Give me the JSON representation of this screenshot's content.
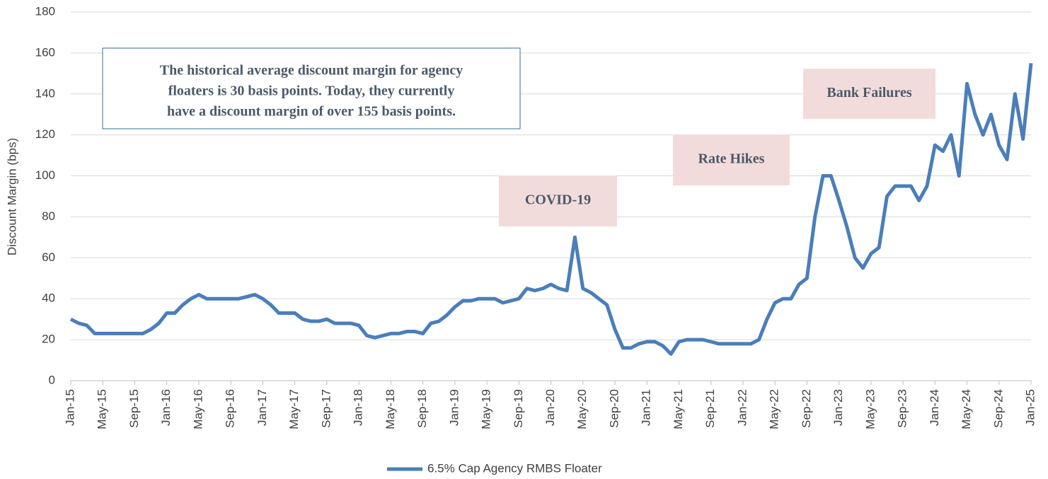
{
  "chart_data": {
    "type": "line",
    "y_label": "Discount Margin (bps)",
    "categories": [
      "Jan-15",
      null,
      null,
      null,
      "May-15",
      null,
      null,
      null,
      "Sep-15",
      null,
      null,
      null,
      "Jan-16",
      null,
      null,
      null,
      "May-16",
      null,
      null,
      null,
      "Sep-16",
      null,
      null,
      null,
      "Jan-17",
      null,
      null,
      null,
      "May-17",
      null,
      null,
      null,
      "Sep-17",
      null,
      null,
      null,
      "Jan-18",
      null,
      null,
      null,
      "May-18",
      null,
      null,
      null,
      "Sep-18",
      null,
      null,
      null,
      "Jan-19",
      null,
      null,
      null,
      "May-19",
      null,
      null,
      null,
      "Sep-19",
      null,
      null,
      null,
      "Jan-20",
      null,
      null,
      null,
      "May-20",
      null,
      null,
      null,
      "Sep-20",
      null,
      null,
      null,
      "Jan-21",
      null,
      null,
      null,
      "May-21",
      null,
      null,
      null,
      "Sep-21",
      null,
      null,
      null,
      "Jan-22",
      null,
      null,
      null,
      "May-22",
      null,
      null,
      null,
      "Sep-22",
      null,
      null,
      null,
      "Jan-23",
      null,
      null,
      null,
      "May-23",
      null,
      null,
      null,
      "Sep-23",
      null,
      null,
      null,
      "Jan-24",
      null,
      null,
      null,
      "May-24",
      null,
      null,
      null,
      "Sep-24",
      null,
      null,
      null,
      "Jan-25"
    ],
    "series": [
      {
        "name": "6.5% Cap Agency RMBS Floater",
        "color": "#4a7ebb",
        "values": [
          30,
          28,
          27,
          23,
          23,
          23,
          23,
          23,
          23,
          23,
          25,
          28,
          33,
          33,
          37,
          40,
          42,
          40,
          40,
          40,
          40,
          40,
          41,
          42,
          40,
          37,
          33,
          33,
          33,
          30,
          29,
          29,
          30,
          28,
          28,
          28,
          27,
          22,
          21,
          22,
          23,
          23,
          24,
          24,
          23,
          28,
          29,
          32,
          36,
          39,
          39,
          40,
          40,
          40,
          38,
          39,
          40,
          45,
          44,
          45,
          47,
          45,
          44,
          70,
          45,
          43,
          40,
          37,
          25,
          16,
          16,
          18,
          19,
          19,
          17,
          13,
          19,
          20,
          20,
          20,
          19,
          18,
          18,
          18,
          18,
          18,
          20,
          30,
          38,
          40,
          40,
          47,
          50,
          80,
          100,
          100,
          88,
          75,
          60,
          55,
          62,
          65,
          90,
          95,
          95,
          95,
          88,
          95,
          115,
          112,
          120,
          100,
          145,
          130,
          120,
          130,
          115,
          108,
          140,
          118,
          155
        ]
      }
    ],
    "ylim": [
      0,
      180
    ],
    "yticks": [
      0,
      20,
      40,
      60,
      80,
      100,
      120,
      140,
      160,
      180
    ],
    "grid": true,
    "legend": "bottom",
    "callout": [
      "The historical average discount margin for agency",
      "floaters is 30 basis points. Today, they currently",
      "have a discount margin of over 155 basis points."
    ],
    "annotations": [
      "COVID-19",
      "Rate Hikes",
      "Bank Failures"
    ]
  }
}
